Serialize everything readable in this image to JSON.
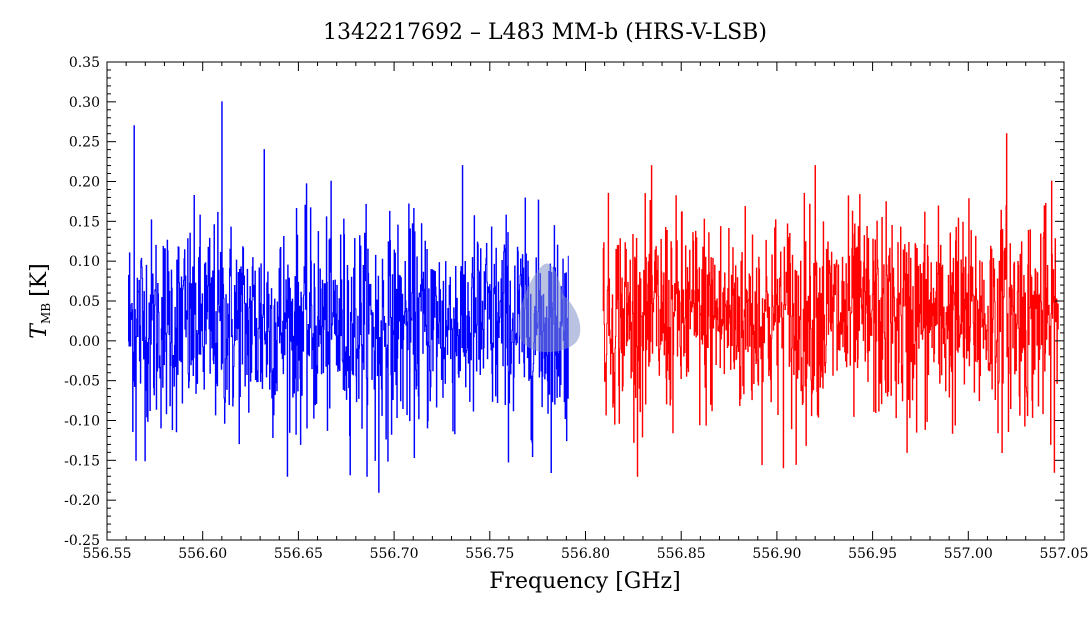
{
  "chart_data": {
    "type": "line",
    "title": "1342217692 – L483 MM-b (HRS-V-LSB)",
    "xlabel": "Frequency [GHz]",
    "ylabel": {
      "symbol": "T",
      "subscript": "MB",
      "unit": "[K]"
    },
    "xlim": [
      556.55,
      557.05
    ],
    "ylim": [
      -0.25,
      0.35
    ],
    "x_ticks": [
      "556.55",
      "556.60",
      "556.65",
      "556.70",
      "556.75",
      "556.80",
      "556.85",
      "556.90",
      "556.95",
      "557.00",
      "557.05"
    ],
    "y_ticks": [
      "-0.25",
      "-0.20",
      "-0.15",
      "-0.10",
      "-0.05",
      "0.00",
      "0.05",
      "0.10",
      "0.15",
      "0.20",
      "0.25",
      "0.30",
      "0.35"
    ],
    "grid": false,
    "series": [
      {
        "color": "#0000ff",
        "x_range": [
          556.561,
          556.791
        ],
        "noise_sigma": 0.065,
        "mean": 0.02,
        "extremes": [
          {
            "x": 556.61,
            "y": 0.3
          },
          {
            "x": 556.564,
            "y": 0.27
          },
          {
            "x": 556.632,
            "y": 0.24
          },
          {
            "x": 556.692,
            "y": -0.19
          },
          {
            "x": 556.69,
            "y": -0.15
          },
          {
            "x": 556.565,
            "y": -0.15
          }
        ]
      },
      {
        "color": "#ff0000",
        "x_range": [
          556.809,
          557.047
        ],
        "noise_sigma": 0.065,
        "mean": 0.03,
        "extremes": [
          {
            "x": 557.02,
            "y": 0.26
          },
          {
            "x": 556.92,
            "y": 0.22
          },
          {
            "x": 556.91,
            "y": -0.155
          },
          {
            "x": 556.968,
            "y": -0.14
          },
          {
            "x": 557.043,
            "y": -0.13
          }
        ]
      }
    ],
    "annotation": {
      "shape": "blob",
      "color": "#8090c8",
      "x": 556.781,
      "y": 0.02
    }
  }
}
